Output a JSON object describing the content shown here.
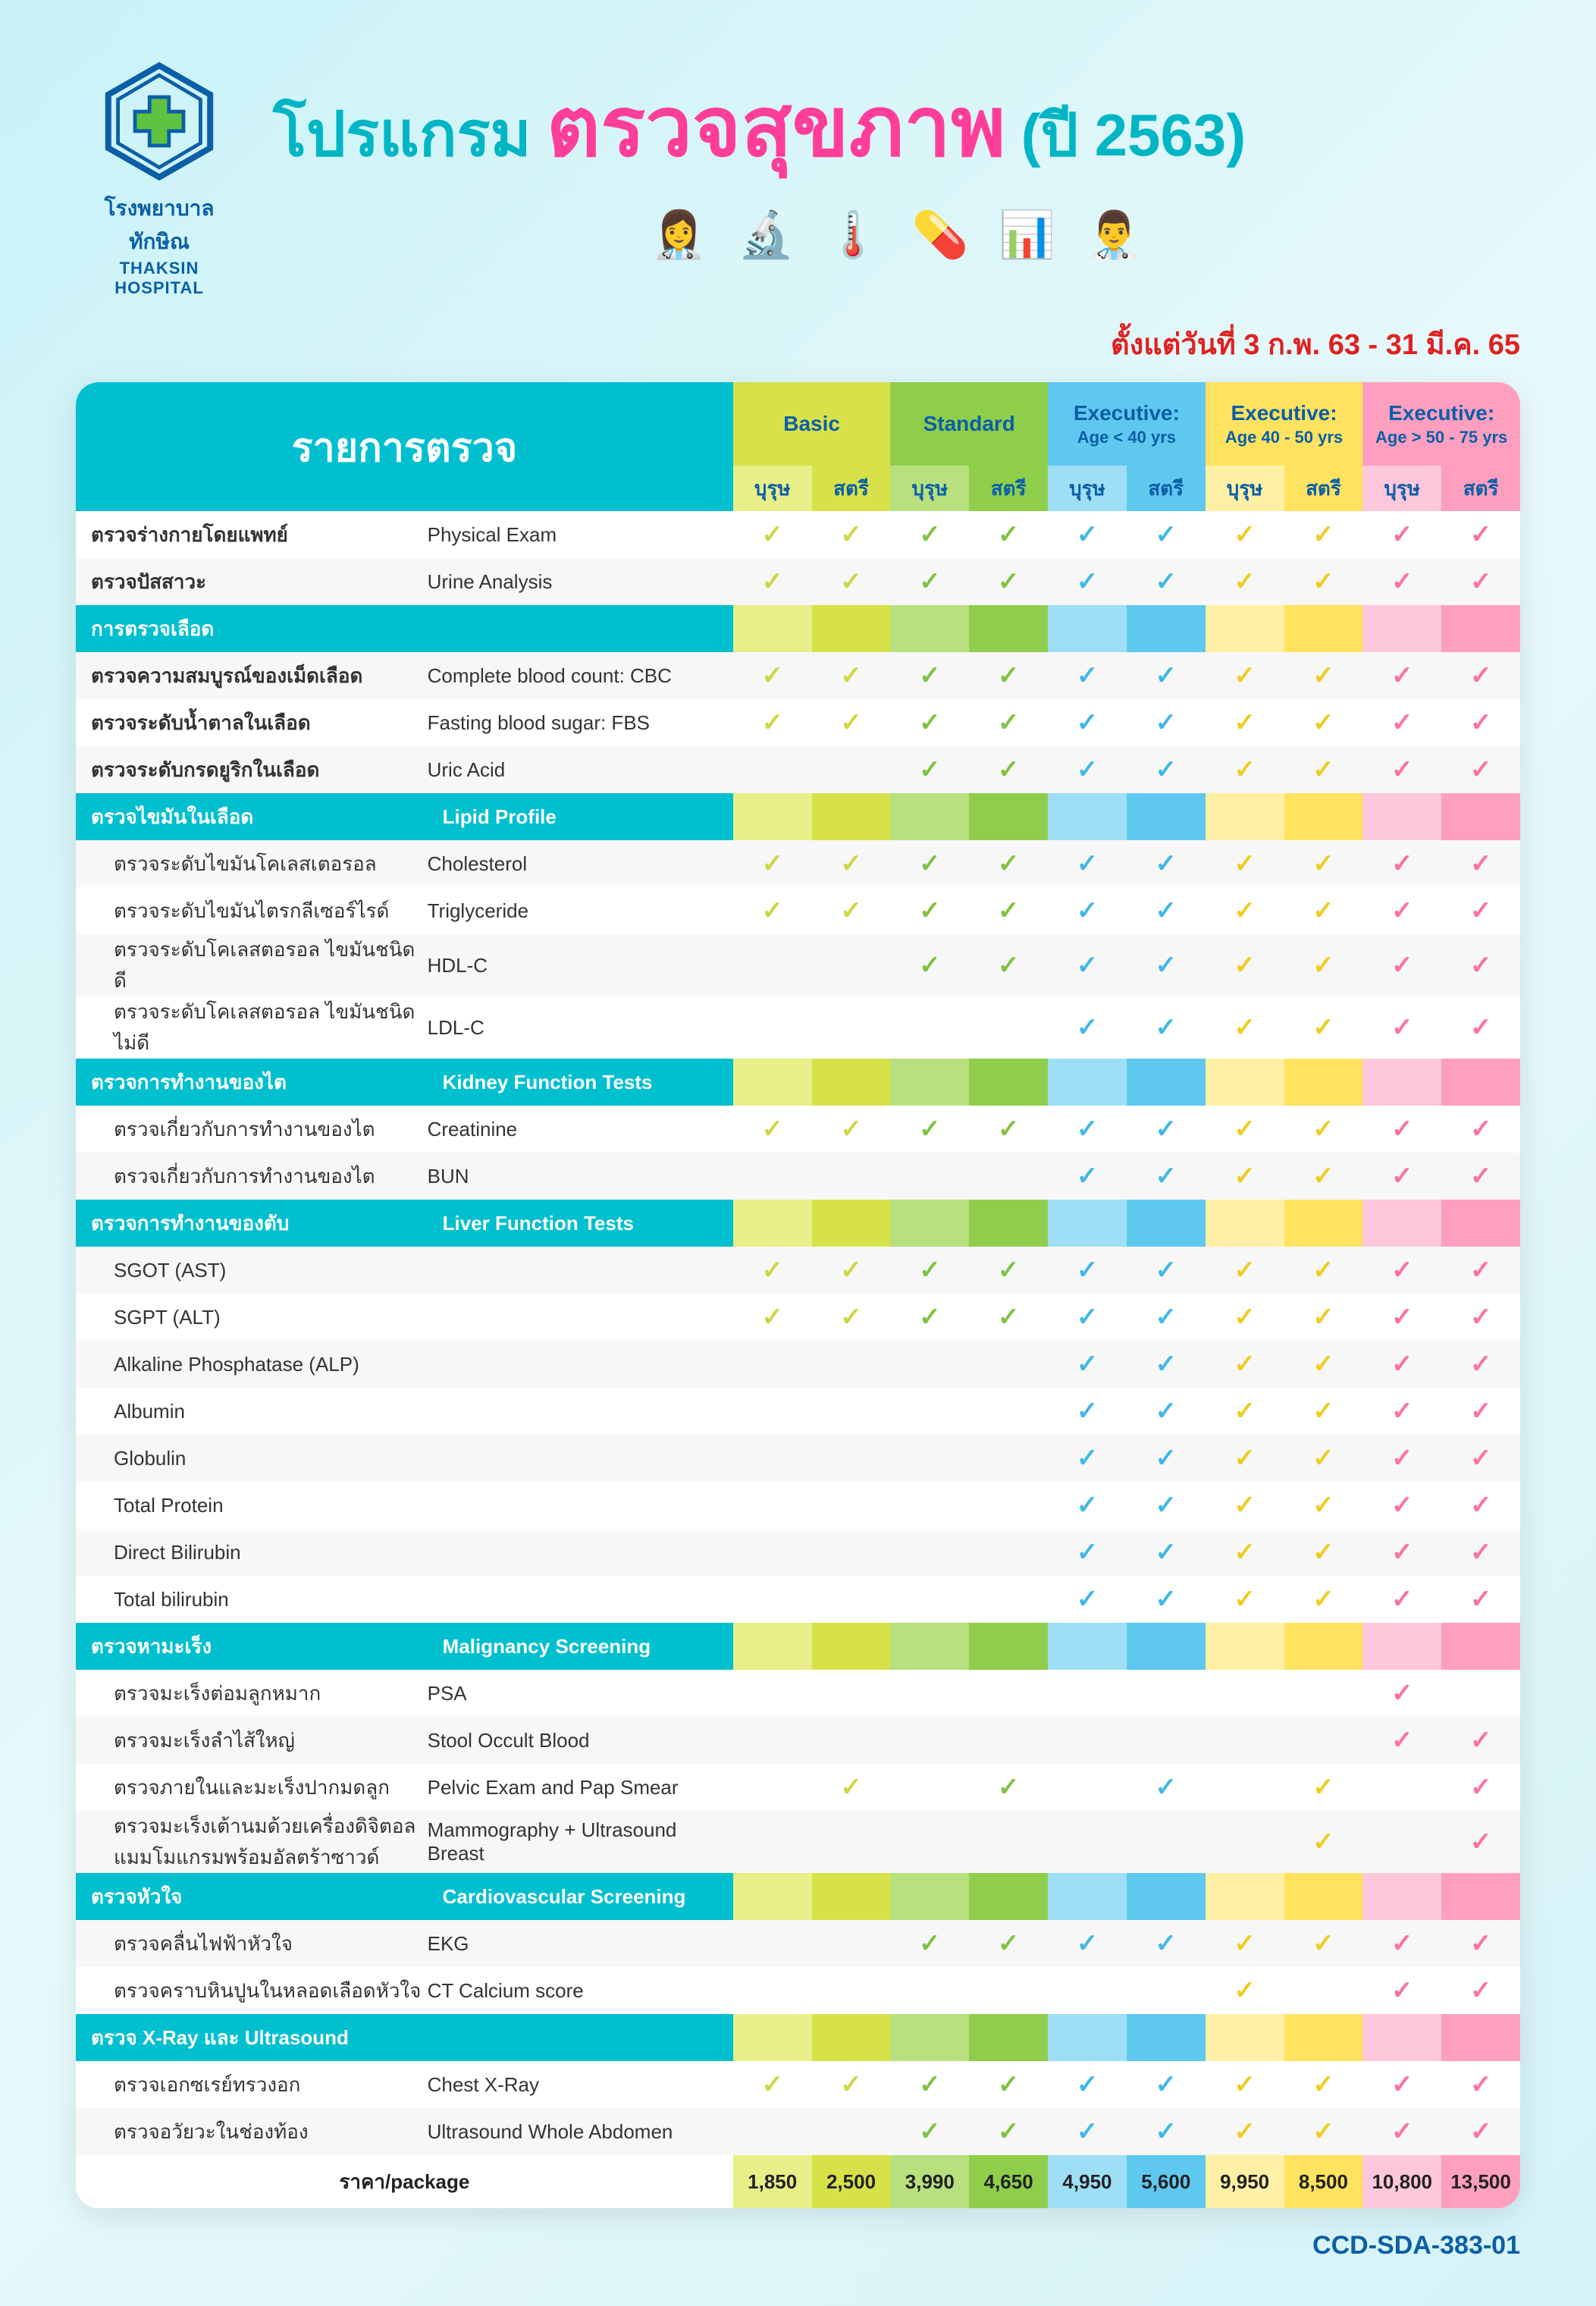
{
  "logo": {
    "th": "โรงพยาบาลทักษิณ",
    "en": "THAKSIN HOSPITAL"
  },
  "title": {
    "pre": "โปรแกรม",
    "main": "ตรวจสุขภาพ",
    "year": "(ปี 2563)"
  },
  "date_line": "ตั้งแต่วันที่ 3 ก.พ. 63 - 31 มี.ค. 65",
  "doc_code": "CCD-SDA-383-01",
  "header_label": "รายการตรวจ",
  "gender": {
    "male": "บุรุษ",
    "female": "สตรี"
  },
  "price_label": "ราคา/package",
  "packages": [
    {
      "name": "Basic",
      "sub": "",
      "hdr_bg": "#d7e24a",
      "m_bg": "#e8ef88",
      "f_bg": "#d7e24a",
      "check": "#cfd640",
      "pm": "1,850",
      "pf": "2,500"
    },
    {
      "name": "Standard",
      "sub": "",
      "hdr_bg": "#8fce4a",
      "m_bg": "#b8e07f",
      "f_bg": "#8fce4a",
      "check": "#7fc241",
      "pm": "3,990",
      "pf": "4,650"
    },
    {
      "name": "Executive:",
      "sub": "Age < 40 yrs",
      "hdr_bg": "#5fc8ef",
      "m_bg": "#9fdff6",
      "f_bg": "#5fc8ef",
      "check": "#3fb8e6",
      "pm": "4,950",
      "pf": "5,600"
    },
    {
      "name": "Executive:",
      "sub": "Age 40 - 50 yrs",
      "hdr_bg": "#ffe25f",
      "m_bg": "#fff0a6",
      "f_bg": "#ffe25f",
      "check": "#f0cc20",
      "pm": "9,950",
      "pf": "8,500"
    },
    {
      "name": "Executive:",
      "sub": "Age > 50 - 75 yrs",
      "hdr_bg": "#ff9fc0",
      "m_bg": "#ffc7db",
      "f_bg": "#ff9fc0",
      "check": "#ff6fa3",
      "pm": "10,800",
      "pf": "13,500"
    }
  ],
  "rows": [
    {
      "type": "item",
      "th": "ตรวจร่างกายโดยแพทย์",
      "en": "Physical Exam",
      "c": [
        1,
        1,
        1,
        1,
        1,
        1,
        1,
        1,
        1,
        1
      ]
    },
    {
      "type": "item",
      "th": "ตรวจปัสสาวะ",
      "en": "Urine Analysis",
      "c": [
        1,
        1,
        1,
        1,
        1,
        1,
        1,
        1,
        1,
        1
      ]
    },
    {
      "type": "section",
      "th": "การตรวจเลือด",
      "en": ""
    },
    {
      "type": "item",
      "th": "ตรวจความสมบูรณ์ของเม็ดเลือด",
      "en": "Complete blood count: CBC",
      "c": [
        1,
        1,
        1,
        1,
        1,
        1,
        1,
        1,
        1,
        1
      ]
    },
    {
      "type": "item",
      "th": "ตรวจระดับน้ำตาลในเลือด",
      "en": "Fasting blood sugar: FBS",
      "c": [
        1,
        1,
        1,
        1,
        1,
        1,
        1,
        1,
        1,
        1
      ]
    },
    {
      "type": "item",
      "th": "ตรวจระดับกรดยูริกในเลือด",
      "en": "Uric Acid",
      "c": [
        0,
        0,
        1,
        1,
        1,
        1,
        1,
        1,
        1,
        1
      ]
    },
    {
      "type": "section",
      "th": "ตรวจไขมันในเลือด",
      "en": "Lipid Profile"
    },
    {
      "type": "item",
      "indent": true,
      "th": "ตรวจระดับไขมันโคเลสเตอรอล",
      "en": "Cholesterol",
      "c": [
        1,
        1,
        1,
        1,
        1,
        1,
        1,
        1,
        1,
        1
      ]
    },
    {
      "type": "item",
      "indent": true,
      "th": "ตรวจระดับไขมันไตรกลีเซอร์ไรด์",
      "en": "Triglyceride",
      "c": [
        1,
        1,
        1,
        1,
        1,
        1,
        1,
        1,
        1,
        1
      ]
    },
    {
      "type": "item",
      "indent": true,
      "th": "ตรวจระดับโคเลสตอรอล ไขมันชนิดดี",
      "en": "HDL-C",
      "c": [
        0,
        0,
        1,
        1,
        1,
        1,
        1,
        1,
        1,
        1
      ]
    },
    {
      "type": "item",
      "indent": true,
      "th": "ตรวจระดับโคเลสตอรอล ไขมันชนิดไม่ดี",
      "en": "LDL-C",
      "c": [
        0,
        0,
        0,
        0,
        1,
        1,
        1,
        1,
        1,
        1
      ]
    },
    {
      "type": "section",
      "th": "ตรวจการทำงานของไต",
      "en": "Kidney Function Tests"
    },
    {
      "type": "item",
      "indent": true,
      "th": "ตรวจเกี่ยวกับการทำงานของไต",
      "en": "Creatinine",
      "c": [
        1,
        1,
        1,
        1,
        1,
        1,
        1,
        1,
        1,
        1
      ]
    },
    {
      "type": "item",
      "indent": true,
      "th": "ตรวจเกี่ยวกับการทำงานของไต",
      "en": "BUN",
      "c": [
        0,
        0,
        0,
        0,
        1,
        1,
        1,
        1,
        1,
        1
      ]
    },
    {
      "type": "section",
      "th": "ตรวจการทำงานของตับ",
      "en": "Liver Function Tests"
    },
    {
      "type": "item",
      "indent": true,
      "th": "SGOT (AST)",
      "en": "",
      "c": [
        1,
        1,
        1,
        1,
        1,
        1,
        1,
        1,
        1,
        1
      ]
    },
    {
      "type": "item",
      "indent": true,
      "th": "SGPT (ALT)",
      "en": "",
      "c": [
        1,
        1,
        1,
        1,
        1,
        1,
        1,
        1,
        1,
        1
      ]
    },
    {
      "type": "item",
      "indent": true,
      "th": "Alkaline Phosphatase (ALP)",
      "en": "",
      "c": [
        0,
        0,
        0,
        0,
        1,
        1,
        1,
        1,
        1,
        1
      ]
    },
    {
      "type": "item",
      "indent": true,
      "th": "Albumin",
      "en": "",
      "c": [
        0,
        0,
        0,
        0,
        1,
        1,
        1,
        1,
        1,
        1
      ]
    },
    {
      "type": "item",
      "indent": true,
      "th": "Globulin",
      "en": "",
      "c": [
        0,
        0,
        0,
        0,
        1,
        1,
        1,
        1,
        1,
        1
      ]
    },
    {
      "type": "item",
      "indent": true,
      "th": "Total Protein",
      "en": "",
      "c": [
        0,
        0,
        0,
        0,
        1,
        1,
        1,
        1,
        1,
        1
      ]
    },
    {
      "type": "item",
      "indent": true,
      "th": "Direct Bilirubin",
      "en": "",
      "c": [
        0,
        0,
        0,
        0,
        1,
        1,
        1,
        1,
        1,
        1
      ]
    },
    {
      "type": "item",
      "indent": true,
      "th": "Total bilirubin",
      "en": "",
      "c": [
        0,
        0,
        0,
        0,
        1,
        1,
        1,
        1,
        1,
        1
      ]
    },
    {
      "type": "section",
      "th": "ตรวจหามะเร็ง",
      "en": "Malignancy Screening"
    },
    {
      "type": "item",
      "indent": true,
      "th": "ตรวจมะเร็งต่อมลูกหมาก",
      "en": "PSA",
      "c": [
        0,
        0,
        0,
        0,
        0,
        0,
        0,
        0,
        1,
        0
      ]
    },
    {
      "type": "item",
      "indent": true,
      "th": "ตรวจมะเร็งลำไส้ใหญ่",
      "en": "Stool Occult Blood",
      "c": [
        0,
        0,
        0,
        0,
        0,
        0,
        0,
        0,
        1,
        1
      ]
    },
    {
      "type": "item",
      "indent": true,
      "th": "ตรวจภายในและมะเร็งปากมดลูก",
      "en": "Pelvic Exam and Pap Smear",
      "c": [
        0,
        1,
        0,
        1,
        0,
        1,
        0,
        1,
        0,
        1
      ]
    },
    {
      "type": "item",
      "indent": true,
      "th": "ตรวจมะเร็งเต้านมด้วยเครื่องดิจิตอลแมมโมแกรมพร้อมอัลตร้าซาวด์",
      "en": "Mammography + Ultrasound Breast",
      "c": [
        0,
        0,
        0,
        0,
        0,
        0,
        0,
        1,
        0,
        1
      ]
    },
    {
      "type": "section",
      "th": "ตรวจหัวใจ",
      "en": "Cardiovascular Screening"
    },
    {
      "type": "item",
      "indent": true,
      "th": "ตรวจคลื่นไฟฟ้าหัวใจ",
      "en": "EKG",
      "c": [
        0,
        0,
        1,
        1,
        1,
        1,
        1,
        1,
        1,
        1
      ]
    },
    {
      "type": "item",
      "indent": true,
      "th": "ตรวจคราบหินปูนในหลอดเลือดหัวใจ",
      "en": "CT Calcium score",
      "c": [
        0,
        0,
        0,
        0,
        0,
        0,
        1,
        0,
        1,
        1
      ]
    },
    {
      "type": "section",
      "th": "ตรวจ X-Ray และ Ultrasound",
      "en": ""
    },
    {
      "type": "item",
      "indent": true,
      "th": "ตรวจเอกซเรย์ทรวงอก",
      "en": "Chest X-Ray",
      "c": [
        1,
        1,
        1,
        1,
        1,
        1,
        1,
        1,
        1,
        1
      ]
    },
    {
      "type": "item",
      "indent": true,
      "th": "ตรวจอวัยวะในช่องท้อง",
      "en": "Ultrasound Whole Abdomen",
      "c": [
        0,
        0,
        1,
        1,
        1,
        1,
        1,
        1,
        1,
        1
      ]
    }
  ]
}
